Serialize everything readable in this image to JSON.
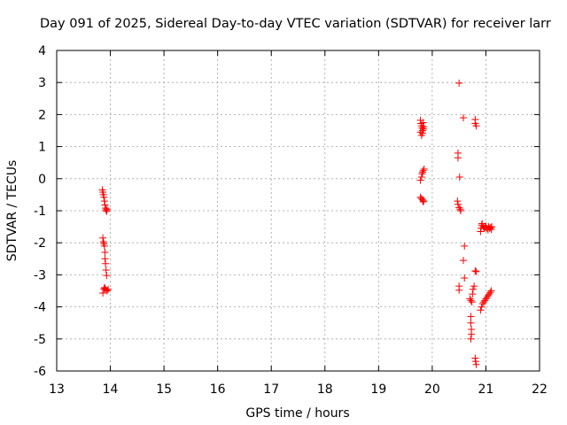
{
  "chart_data": {
    "type": "scatter",
    "title": "Day 091 of 2025, Sidereal Day-to-day VTEC variation (SDTVAR) for receiver larr",
    "xlabel": "GPS time / hours",
    "ylabel": "SDTVAR / TECUs",
    "xlim": [
      13,
      22
    ],
    "ylim": [
      -6,
      4
    ],
    "xticks": [
      13,
      14,
      15,
      16,
      17,
      18,
      19,
      20,
      21,
      22
    ],
    "yticks": [
      -6,
      -5,
      -4,
      -3,
      -2,
      -1,
      0,
      1,
      2,
      3,
      4
    ],
    "grid": true,
    "marker": "+",
    "colors": {
      "points": "#ff0000",
      "grid": "#a0a0a0",
      "axis": "#000000"
    },
    "series": [
      {
        "name": "SDTVAR",
        "points": [
          [
            13.85,
            -0.35
          ],
          [
            13.86,
            -0.42
          ],
          [
            13.87,
            -0.5
          ],
          [
            13.88,
            -0.58
          ],
          [
            13.89,
            -0.7
          ],
          [
            13.9,
            -0.82
          ],
          [
            13.91,
            -0.92
          ],
          [
            13.92,
            -0.98
          ],
          [
            13.93,
            -1.02
          ],
          [
            13.94,
            -0.95
          ],
          [
            13.86,
            -1.85
          ],
          [
            13.87,
            -1.97
          ],
          [
            13.88,
            -2.03
          ],
          [
            13.89,
            -2.1
          ],
          [
            13.9,
            -2.3
          ],
          [
            13.9,
            -2.5
          ],
          [
            13.91,
            -2.65
          ],
          [
            13.92,
            -2.85
          ],
          [
            13.93,
            -3.02
          ],
          [
            13.88,
            -3.45
          ],
          [
            13.89,
            -3.4
          ],
          [
            13.9,
            -3.42
          ],
          [
            13.92,
            -3.47
          ],
          [
            13.94,
            -3.5
          ],
          [
            13.96,
            -3.45
          ],
          [
            13.86,
            -3.57
          ],
          [
            19.78,
            1.82
          ],
          [
            19.79,
            1.72
          ],
          [
            19.8,
            1.65
          ],
          [
            19.81,
            1.58
          ],
          [
            19.82,
            1.5
          ],
          [
            19.83,
            1.75
          ],
          [
            19.84,
            1.62
          ],
          [
            19.78,
            1.45
          ],
          [
            19.8,
            1.35
          ],
          [
            19.82,
            1.42
          ],
          [
            19.84,
            1.55
          ],
          [
            19.78,
            -0.05
          ],
          [
            19.8,
            0.05
          ],
          [
            19.81,
            0.15
          ],
          [
            19.82,
            0.2
          ],
          [
            19.83,
            0.25
          ],
          [
            19.85,
            0.3
          ],
          [
            19.78,
            -0.58
          ],
          [
            19.8,
            -0.62
          ],
          [
            19.82,
            -0.66
          ],
          [
            19.84,
            -0.7
          ],
          [
            19.83,
            -0.72
          ],
          [
            20.48,
            0.8
          ],
          [
            20.48,
            0.65
          ],
          [
            20.51,
            0.05
          ],
          [
            20.5,
            2.98
          ],
          [
            20.58,
            1.9
          ],
          [
            20.47,
            -0.7
          ],
          [
            20.48,
            -0.8
          ],
          [
            20.5,
            -0.9
          ],
          [
            20.52,
            -0.95
          ],
          [
            20.53,
            -1.0
          ],
          [
            20.5,
            -3.35
          ],
          [
            20.5,
            -3.48
          ],
          [
            20.6,
            -2.1
          ],
          [
            20.58,
            -2.55
          ],
          [
            20.6,
            -3.1
          ],
          [
            20.8,
            1.85
          ],
          [
            20.8,
            1.72
          ],
          [
            20.82,
            1.65
          ],
          [
            20.7,
            -3.75
          ],
          [
            20.72,
            -3.8
          ],
          [
            20.74,
            -3.85
          ],
          [
            20.75,
            -3.6
          ],
          [
            20.76,
            -3.45
          ],
          [
            20.78,
            -3.35
          ],
          [
            20.72,
            -4.3
          ],
          [
            20.72,
            -4.5
          ],
          [
            20.73,
            -4.7
          ],
          [
            20.73,
            -4.85
          ],
          [
            20.72,
            -5.0
          ],
          [
            20.8,
            -2.88
          ],
          [
            20.82,
            -2.9
          ],
          [
            20.8,
            -5.6
          ],
          [
            20.81,
            -5.7
          ],
          [
            20.82,
            -5.8
          ],
          [
            20.9,
            -4.1
          ],
          [
            20.92,
            -4.0
          ],
          [
            20.94,
            -3.9
          ],
          [
            20.96,
            -3.85
          ],
          [
            20.98,
            -3.8
          ],
          [
            21.0,
            -3.75
          ],
          [
            21.02,
            -3.7
          ],
          [
            21.04,
            -3.65
          ],
          [
            21.06,
            -3.6
          ],
          [
            21.08,
            -3.55
          ],
          [
            21.1,
            -3.5
          ],
          [
            20.9,
            -1.65
          ],
          [
            20.91,
            -1.55
          ],
          [
            20.92,
            -1.45
          ],
          [
            20.93,
            -1.4
          ],
          [
            20.95,
            -1.5
          ],
          [
            20.97,
            -1.55
          ],
          [
            20.99,
            -1.52
          ],
          [
            21.0,
            -1.48
          ],
          [
            21.02,
            -1.55
          ],
          [
            21.04,
            -1.6
          ],
          [
            21.05,
            -1.5
          ],
          [
            21.07,
            -1.55
          ],
          [
            21.09,
            -1.52
          ],
          [
            21.1,
            -1.58
          ],
          [
            21.11,
            -1.5
          ]
        ]
      }
    ]
  }
}
